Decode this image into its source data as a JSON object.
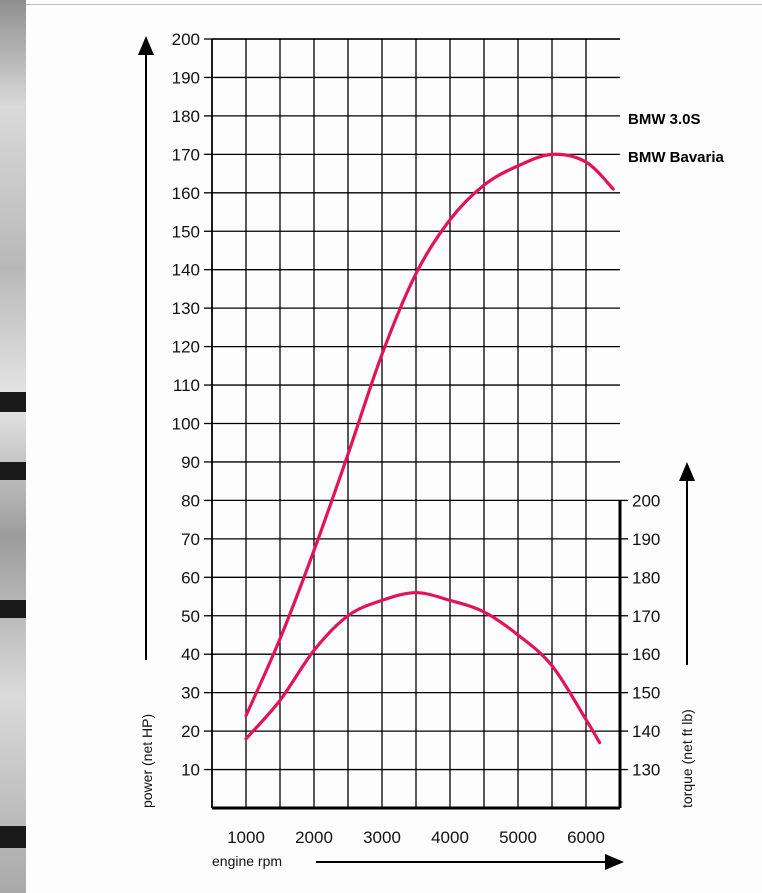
{
  "chart_data": {
    "type": "line",
    "legend": [
      "BMW 3.0S",
      "BMW Bavaria"
    ],
    "legend_placement": "top-right",
    "grid": true,
    "x_axis": {
      "label": "engine rpm",
      "ticks": [
        "1000",
        "2000",
        "3000",
        "4000",
        "5000",
        "6000"
      ],
      "range": [
        500,
        6500
      ]
    },
    "y_axis_left": {
      "label": "power (net HP)",
      "ticks": [
        "10",
        "20",
        "30",
        "40",
        "50",
        "60",
        "70",
        "80",
        "90",
        "100",
        "110",
        "120",
        "130",
        "140",
        "150",
        "160",
        "170",
        "180",
        "190",
        "200"
      ],
      "range": [
        0,
        200
      ]
    },
    "y_axis_right": {
      "label": "torque (net ft lb)",
      "ticks": [
        "130",
        "140",
        "150",
        "160",
        "170",
        "180",
        "190",
        "200"
      ],
      "range": [
        120,
        200
      ]
    },
    "series": [
      {
        "axis": "left",
        "color": "#e3125d",
        "points": [
          [
            1000,
            24
          ],
          [
            1500,
            44
          ],
          [
            2000,
            67
          ],
          [
            2500,
            92
          ],
          [
            3000,
            118
          ],
          [
            3500,
            139
          ],
          [
            4000,
            153
          ],
          [
            4500,
            162
          ],
          [
            5000,
            167
          ],
          [
            5500,
            170
          ],
          [
            6000,
            168
          ],
          [
            6400,
            161
          ]
        ]
      },
      {
        "axis": "right",
        "color": "#e3125d",
        "points": [
          [
            1000,
            138
          ],
          [
            1500,
            148
          ],
          [
            2000,
            161
          ],
          [
            2500,
            170
          ],
          [
            3000,
            174
          ],
          [
            3500,
            176
          ],
          [
            4000,
            174
          ],
          [
            4500,
            171
          ],
          [
            5000,
            165
          ],
          [
            5500,
            157
          ],
          [
            6000,
            143
          ],
          [
            6200,
            137
          ]
        ]
      }
    ]
  }
}
